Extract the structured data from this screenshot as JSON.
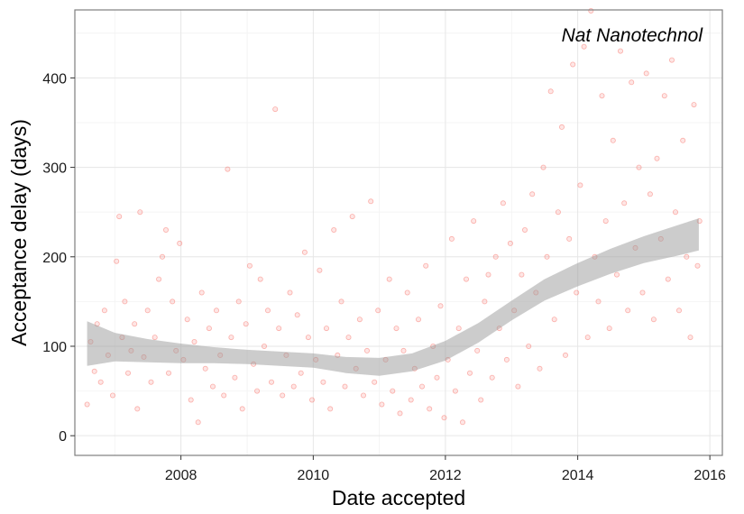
{
  "chart_data": {
    "type": "scatter",
    "annotation": "Nat Nanotechnol",
    "xlabel": "Date accepted",
    "ylabel": "Acceptance delay (days)",
    "x_ticks": [
      "2008",
      "2010",
      "2012",
      "2014",
      "2016"
    ],
    "y_ticks": [
      "0",
      "100",
      "200",
      "300",
      "400"
    ],
    "xlim": [
      "2006-05-25",
      "2016-03-10"
    ],
    "ylim": [
      -22,
      476
    ],
    "grid": true,
    "point_color": "#f8766d",
    "smooth_color": "#999999",
    "smooth": {
      "dates": [
        "2006-08-01",
        "2007-01-01",
        "2007-07-01",
        "2008-01-01",
        "2008-07-01",
        "2009-01-01",
        "2009-07-01",
        "2010-01-01",
        "2010-07-01",
        "2011-01-01",
        "2011-07-01",
        "2012-01-01",
        "2012-07-01",
        "2013-01-01",
        "2013-07-01",
        "2014-01-01",
        "2014-07-01",
        "2015-01-01",
        "2015-07-01",
        "2015-11-01"
      ],
      "fit": [
        103,
        99,
        95,
        92,
        90,
        88,
        86,
        84,
        79,
        77,
        82,
        95,
        115,
        140,
        163,
        180,
        195,
        208,
        218,
        225
      ],
      "lower": [
        78,
        83,
        82,
        81,
        81,
        80,
        78,
        76,
        70,
        67,
        72,
        84,
        104,
        129,
        151,
        167,
        181,
        193,
        201,
        207
      ],
      "upper": [
        128,
        115,
        108,
        103,
        99,
        96,
        94,
        92,
        88,
        87,
        92,
        106,
        126,
        151,
        175,
        193,
        209,
        223,
        235,
        243
      ]
    },
    "points": [
      [
        "2006-08-01",
        35
      ],
      [
        "2006-08-20",
        105
      ],
      [
        "2006-09-10",
        72
      ],
      [
        "2006-09-25",
        125
      ],
      [
        "2006-10-15",
        60
      ],
      [
        "2006-11-05",
        140
      ],
      [
        "2006-11-25",
        90
      ],
      [
        "2006-12-20",
        45
      ],
      [
        "2007-01-10",
        195
      ],
      [
        "2007-01-25",
        245
      ],
      [
        "2007-02-10",
        110
      ],
      [
        "2007-02-25",
        150
      ],
      [
        "2007-03-15",
        70
      ],
      [
        "2007-04-01",
        95
      ],
      [
        "2007-04-20",
        125
      ],
      [
        "2007-05-05",
        30
      ],
      [
        "2007-05-20",
        250
      ],
      [
        "2007-06-10",
        88
      ],
      [
        "2007-07-01",
        140
      ],
      [
        "2007-07-20",
        60
      ],
      [
        "2007-08-10",
        110
      ],
      [
        "2007-09-01",
        175
      ],
      [
        "2007-09-20",
        200
      ],
      [
        "2007-10-10",
        230
      ],
      [
        "2007-10-25",
        70
      ],
      [
        "2007-11-15",
        150
      ],
      [
        "2007-12-05",
        95
      ],
      [
        "2007-12-25",
        215
      ],
      [
        "2008-01-15",
        85
      ],
      [
        "2008-02-05",
        130
      ],
      [
        "2008-02-25",
        40
      ],
      [
        "2008-03-15",
        105
      ],
      [
        "2008-04-05",
        15
      ],
      [
        "2008-04-25",
        160
      ],
      [
        "2008-05-15",
        75
      ],
      [
        "2008-06-05",
        120
      ],
      [
        "2008-06-25",
        55
      ],
      [
        "2008-07-15",
        140
      ],
      [
        "2008-08-05",
        90
      ],
      [
        "2008-08-25",
        45
      ],
      [
        "2008-09-15",
        298
      ],
      [
        "2008-10-05",
        110
      ],
      [
        "2008-10-25",
        65
      ],
      [
        "2008-11-15",
        150
      ],
      [
        "2008-12-05",
        30
      ],
      [
        "2008-12-25",
        125
      ],
      [
        "2009-01-15",
        190
      ],
      [
        "2009-02-05",
        80
      ],
      [
        "2009-02-25",
        50
      ],
      [
        "2009-03-15",
        175
      ],
      [
        "2009-04-05",
        100
      ],
      [
        "2009-04-25",
        140
      ],
      [
        "2009-05-15",
        60
      ],
      [
        "2009-06-05",
        365
      ],
      [
        "2009-06-25",
        120
      ],
      [
        "2009-07-15",
        45
      ],
      [
        "2009-08-05",
        90
      ],
      [
        "2009-08-25",
        160
      ],
      [
        "2009-09-15",
        55
      ],
      [
        "2009-10-05",
        135
      ],
      [
        "2009-10-25",
        70
      ],
      [
        "2009-11-15",
        205
      ],
      [
        "2009-12-05",
        110
      ],
      [
        "2009-12-25",
        40
      ],
      [
        "2010-01-15",
        85
      ],
      [
        "2010-02-05",
        185
      ],
      [
        "2010-02-25",
        60
      ],
      [
        "2010-03-15",
        120
      ],
      [
        "2010-04-05",
        30
      ],
      [
        "2010-04-25",
        230
      ],
      [
        "2010-05-15",
        90
      ],
      [
        "2010-06-05",
        150
      ],
      [
        "2010-06-25",
        55
      ],
      [
        "2010-07-15",
        110
      ],
      [
        "2010-08-05",
        245
      ],
      [
        "2010-08-25",
        75
      ],
      [
        "2010-09-15",
        130
      ],
      [
        "2010-10-05",
        45
      ],
      [
        "2010-10-25",
        95
      ],
      [
        "2010-11-15",
        262
      ],
      [
        "2010-12-05",
        60
      ],
      [
        "2010-12-25",
        140
      ],
      [
        "2011-01-15",
        35
      ],
      [
        "2011-02-05",
        85
      ],
      [
        "2011-02-25",
        175
      ],
      [
        "2011-03-15",
        50
      ],
      [
        "2011-04-05",
        120
      ],
      [
        "2011-04-25",
        25
      ],
      [
        "2011-05-15",
        95
      ],
      [
        "2011-06-05",
        160
      ],
      [
        "2011-06-25",
        40
      ],
      [
        "2011-07-15",
        75
      ],
      [
        "2011-08-05",
        130
      ],
      [
        "2011-08-25",
        55
      ],
      [
        "2011-09-15",
        190
      ],
      [
        "2011-10-05",
        30
      ],
      [
        "2011-10-25",
        100
      ],
      [
        "2011-11-15",
        65
      ],
      [
        "2011-12-05",
        145
      ],
      [
        "2011-12-25",
        20
      ],
      [
        "2012-01-15",
        85
      ],
      [
        "2012-02-05",
        220
      ],
      [
        "2012-02-25",
        50
      ],
      [
        "2012-03-15",
        120
      ],
      [
        "2012-04-05",
        15
      ],
      [
        "2012-04-25",
        175
      ],
      [
        "2012-05-15",
        70
      ],
      [
        "2012-06-05",
        240
      ],
      [
        "2012-06-25",
        95
      ],
      [
        "2012-07-15",
        40
      ],
      [
        "2012-08-05",
        150
      ],
      [
        "2012-08-25",
        180
      ],
      [
        "2012-09-15",
        65
      ],
      [
        "2012-10-05",
        200
      ],
      [
        "2012-10-25",
        120
      ],
      [
        "2012-11-15",
        260
      ],
      [
        "2012-12-05",
        85
      ],
      [
        "2012-12-25",
        215
      ],
      [
        "2013-01-15",
        140
      ],
      [
        "2013-02-05",
        55
      ],
      [
        "2013-02-25",
        180
      ],
      [
        "2013-03-15",
        230
      ],
      [
        "2013-04-05",
        100
      ],
      [
        "2013-04-25",
        270
      ],
      [
        "2013-05-15",
        160
      ],
      [
        "2013-06-05",
        75
      ],
      [
        "2013-06-25",
        300
      ],
      [
        "2013-07-15",
        200
      ],
      [
        "2013-08-05",
        385
      ],
      [
        "2013-08-25",
        130
      ],
      [
        "2013-09-15",
        250
      ],
      [
        "2013-10-05",
        345
      ],
      [
        "2013-10-25",
        90
      ],
      [
        "2013-11-15",
        220
      ],
      [
        "2013-12-05",
        415
      ],
      [
        "2013-12-25",
        160
      ],
      [
        "2014-01-15",
        280
      ],
      [
        "2014-02-05",
        435
      ],
      [
        "2014-02-25",
        110
      ],
      [
        "2014-03-15",
        475
      ],
      [
        "2014-04-05",
        200
      ],
      [
        "2014-04-25",
        150
      ],
      [
        "2014-05-15",
        380
      ],
      [
        "2014-06-05",
        240
      ],
      [
        "2014-06-25",
        120
      ],
      [
        "2014-07-15",
        330
      ],
      [
        "2014-08-05",
        180
      ],
      [
        "2014-08-25",
        430
      ],
      [
        "2014-09-15",
        260
      ],
      [
        "2014-10-05",
        140
      ],
      [
        "2014-10-25",
        395
      ],
      [
        "2014-11-15",
        210
      ],
      [
        "2014-12-05",
        300
      ],
      [
        "2014-12-25",
        160
      ],
      [
        "2015-01-15",
        405
      ],
      [
        "2015-02-05",
        270
      ],
      [
        "2015-02-25",
        130
      ],
      [
        "2015-03-15",
        310
      ],
      [
        "2015-04-05",
        220
      ],
      [
        "2015-04-25",
        380
      ],
      [
        "2015-05-15",
        175
      ],
      [
        "2015-06-05",
        420
      ],
      [
        "2015-06-25",
        250
      ],
      [
        "2015-07-15",
        140
      ],
      [
        "2015-08-05",
        330
      ],
      [
        "2015-08-25",
        200
      ],
      [
        "2015-09-15",
        110
      ],
      [
        "2015-10-05",
        370
      ],
      [
        "2015-10-25",
        190
      ],
      [
        "2015-11-05",
        240
      ]
    ]
  }
}
